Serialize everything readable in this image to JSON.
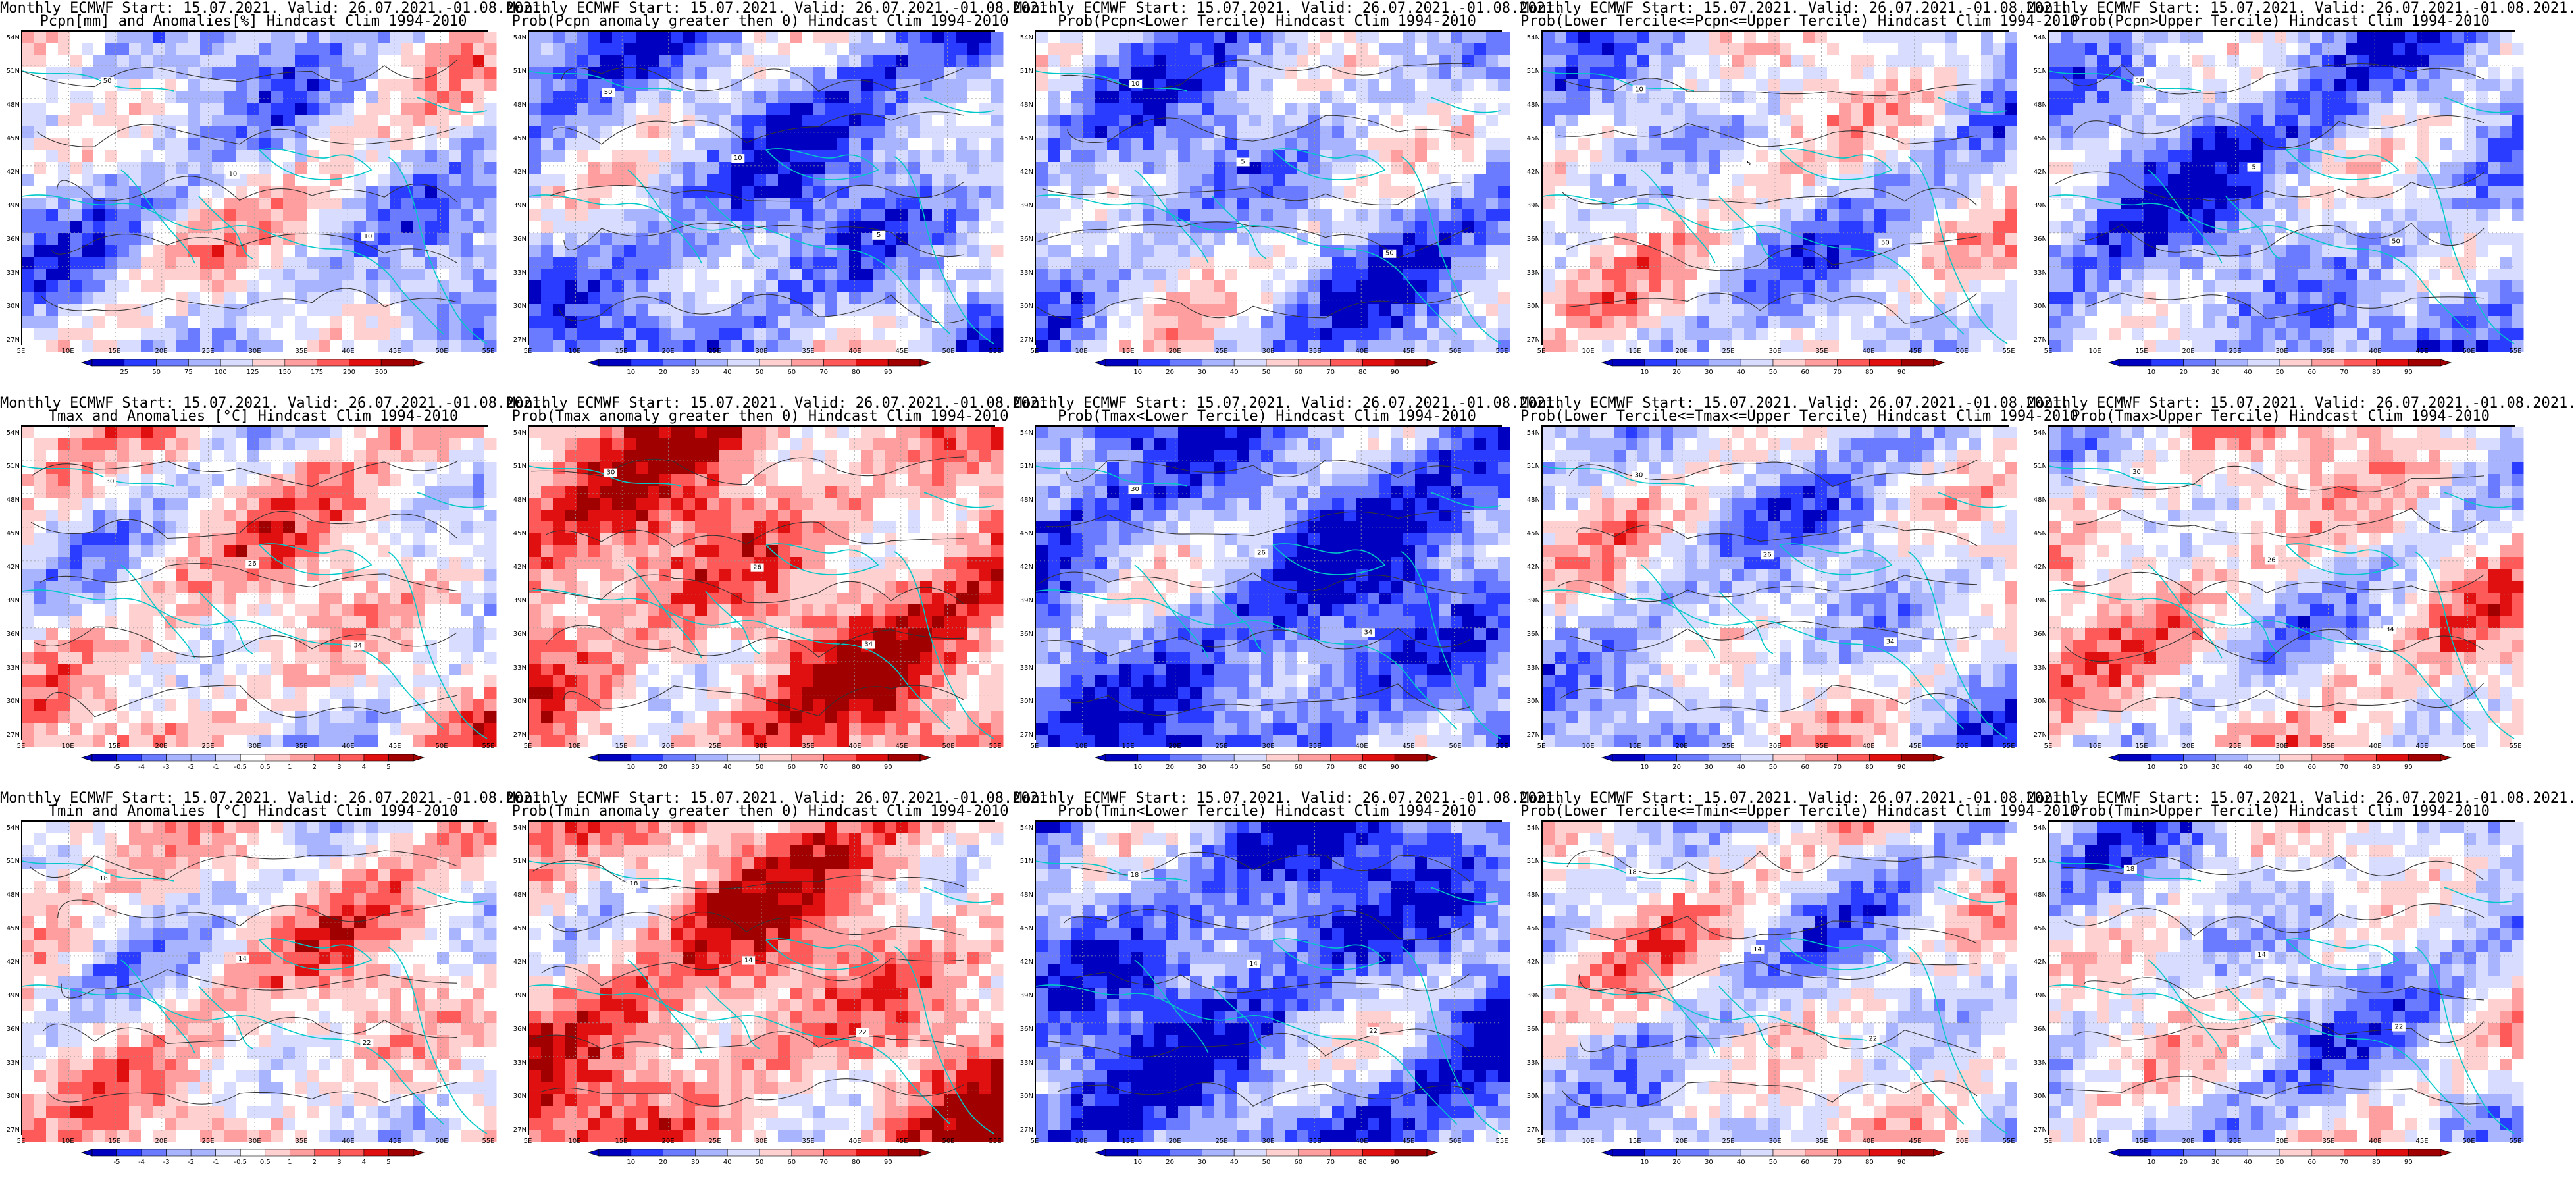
{
  "x_ticks": [
    "5E",
    "10E",
    "15E",
    "20E",
    "25E",
    "30E",
    "35E",
    "40E",
    "45E",
    "50E",
    "55E"
  ],
  "y_ticks": [
    "54N",
    "51N",
    "48N",
    "45N",
    "42N",
    "39N",
    "36N",
    "33N",
    "30N",
    "27N"
  ],
  "colors": {
    "border": "#000000",
    "coast": "#00c8c8",
    "contour": "#333333",
    "scale": [
      "#0000c0",
      "#2a3cff",
      "#6a7bff",
      "#a9b4ff",
      "#d8dcff",
      "#ffffff",
      "#ffd0d0",
      "#ff9e9e",
      "#ff5a5a",
      "#e01010",
      "#a00000"
    ]
  },
  "panels": [
    {
      "id": "pcpn-anom",
      "title1": "Monthly ECMWF Start: 15.07.2021. Valid: 26.07.2021.-01.08.2021.",
      "title2": "Pcpn[mm] and Anomalies[%] Hindcast Clim 1994-2010",
      "ticks": [
        "25",
        "50",
        "75",
        "100",
        "125",
        "150",
        "175",
        "200",
        "300"
      ],
      "bias": -0.2,
      "seed": 3,
      "contours": [
        "50",
        "10",
        "10"
      ]
    },
    {
      "id": "pcpn-prob-gt0",
      "title1": "Monthly ECMWF Start: 15.07.2021. Valid: 26.07.2021.-01.08.2021.",
      "title2": "Prob(Pcpn anomaly greater then 0) Hindcast Clim 1994-2010",
      "ticks": [
        "10",
        "20",
        "30",
        "40",
        "50",
        "60",
        "70",
        "80",
        "90"
      ],
      "bias": -0.45,
      "seed": 7,
      "contours": [
        "50",
        "10",
        "5"
      ]
    },
    {
      "id": "pcpn-prob-lower",
      "title1": "Monthly ECMWF Start: 15.07.2021. Valid: 26.07.2021.-01.08.2021.",
      "title2": "Prob(Pcpn<Lower Tercile) Hindcast Clim 1994-2010",
      "ticks": [
        "10",
        "20",
        "30",
        "40",
        "50",
        "60",
        "70",
        "80",
        "90"
      ],
      "bias": -0.35,
      "seed": 11,
      "contours": [
        "10",
        "5",
        "50"
      ]
    },
    {
      "id": "pcpn-prob-mid",
      "title1": "Monthly ECMWF Start: 15.07.2021. Valid: 26.07.2021.-01.08.2021.",
      "title2": "Prob(Lower Tercile<=Pcpn<=Upper Tercile) Hindcast Clim 1994-2010",
      "ticks": [
        "10",
        "20",
        "30",
        "40",
        "50",
        "60",
        "70",
        "80",
        "90"
      ],
      "bias": -0.15,
      "seed": 13,
      "contours": [
        "10",
        "5",
        "50"
      ]
    },
    {
      "id": "pcpn-prob-upper",
      "title1": "Monthly ECMWF Start: 15.07.2021. Valid: 26.07.2021.-01.08.2021.",
      "title2": "Prob(Pcpn>Upper Tercile) Hindcast Clim 1994-2010",
      "ticks": [
        "10",
        "20",
        "30",
        "40",
        "50",
        "60",
        "70",
        "80",
        "90"
      ],
      "bias": -0.4,
      "seed": 17,
      "contours": [
        "10",
        "5",
        "50"
      ]
    },
    {
      "id": "tmax-anom",
      "title1": "Monthly ECMWF Start: 15.07.2021. Valid: 26.07.2021.-01.08.2021.",
      "title2": "Tmax and Anomalies [°C] Hindcast Clim 1994-2010",
      "ticks": [
        "-5",
        "-4",
        "-3",
        "-2",
        "-1",
        "-0.5",
        "0.5",
        "1",
        "2",
        "3",
        "4",
        "5"
      ],
      "bias": 0.1,
      "seed": 19,
      "contours": [
        "30",
        "26",
        "34"
      ]
    },
    {
      "id": "tmax-prob-gt0",
      "title1": "Monthly ECMWF Start: 15.07.2021. Valid: 26.07.2021.-01.08.2021.",
      "title2": "Prob(Tmax anomaly greater then 0) Hindcast Clim 1994-2010",
      "ticks": [
        "10",
        "20",
        "30",
        "40",
        "50",
        "60",
        "70",
        "80",
        "90"
      ],
      "bias": 0.45,
      "seed": 23,
      "contours": [
        "30",
        "26",
        "34"
      ]
    },
    {
      "id": "tmax-prob-lower",
      "title1": "Monthly ECMWF Start: 15.07.2021. Valid: 26.07.2021.-01.08.2021.",
      "title2": "Prob(Tmax<Lower Tercile) Hindcast Clim 1994-2010",
      "ticks": [
        "10",
        "20",
        "30",
        "40",
        "50",
        "60",
        "70",
        "80",
        "90"
      ],
      "bias": -0.6,
      "seed": 29,
      "contours": [
        "30",
        "26",
        "34"
      ]
    },
    {
      "id": "tmax-prob-mid",
      "title1": "Monthly ECMWF Start: 15.07.2021. Valid: 26.07.2021.-01.08.2021.",
      "title2": "Prob(Lower Tercile<=Tmax<=Upper Tercile) Hindcast Clim 1994-2010",
      "ticks": [
        "10",
        "20",
        "30",
        "40",
        "50",
        "60",
        "70",
        "80",
        "90"
      ],
      "bias": -0.2,
      "seed": 31,
      "contours": [
        "30",
        "26",
        "34"
      ]
    },
    {
      "id": "tmax-prob-upper",
      "title1": "Monthly ECMWF Start: 15.07.2021. Valid: 26.07.2021.-01.08.2021.",
      "title2": "Prob(Tmax>Upper Tercile) Hindcast Clim 1994-2010",
      "ticks": [
        "10",
        "20",
        "30",
        "40",
        "50",
        "60",
        "70",
        "80",
        "90"
      ],
      "bias": 0.05,
      "seed": 37,
      "contours": [
        "30",
        "26",
        "34"
      ]
    },
    {
      "id": "tmin-anom",
      "title1": "Monthly ECMWF Start: 15.07.2021. Valid: 26.07.2021.-01.08.2021.",
      "title2": "Tmin and Anomalies [°C] Hindcast Clim 1994-2010",
      "ticks": [
        "-5",
        "-4",
        "-3",
        "-2",
        "-1",
        "-0.5",
        "0.5",
        "1",
        "2",
        "3",
        "4",
        "5"
      ],
      "bias": 0.1,
      "seed": 41,
      "contours": [
        "18",
        "14",
        "22"
      ]
    },
    {
      "id": "tmin-prob-gt0",
      "title1": "Monthly ECMWF Start: 15.07.2021. Valid: 26.07.2021.-01.08.2021.",
      "title2": "Prob(Tmin anomaly greater then 0) Hindcast Clim 1994-2010",
      "ticks": [
        "10",
        "20",
        "30",
        "40",
        "50",
        "60",
        "70",
        "80",
        "90"
      ],
      "bias": 0.4,
      "seed": 43,
      "contours": [
        "18",
        "14",
        "22"
      ]
    },
    {
      "id": "tmin-prob-lower",
      "title1": "Monthly ECMWF Start: 15.07.2021. Valid: 26.07.2021.-01.08.2021.",
      "title2": "Prob(Tmin<Lower Tercile) Hindcast Clim 1994-2010",
      "ticks": [
        "10",
        "20",
        "30",
        "40",
        "50",
        "60",
        "70",
        "80",
        "90"
      ],
      "bias": -0.6,
      "seed": 47,
      "contours": [
        "18",
        "14",
        "22"
      ]
    },
    {
      "id": "tmin-prob-mid",
      "title1": "Monthly ECMWF Start: 15.07.2021. Valid: 26.07.2021.-01.08.2021.",
      "title2": "Prob(Lower Tercile<=Tmin<=Upper Tercile) Hindcast Clim 1994-2010",
      "ticks": [
        "10",
        "20",
        "30",
        "40",
        "50",
        "60",
        "70",
        "80",
        "90"
      ],
      "bias": -0.1,
      "seed": 53,
      "contours": [
        "18",
        "14",
        "22"
      ]
    },
    {
      "id": "tmin-prob-upper",
      "title1": "Monthly ECMWF Start: 15.07.2021. Valid: 26.07.2021.-01.08.2021.",
      "title2": "Prob(Tmin>Upper Tercile) Hindcast Clim 1994-2010",
      "ticks": [
        "10",
        "20",
        "30",
        "40",
        "50",
        "60",
        "70",
        "80",
        "90"
      ],
      "bias": -0.2,
      "seed": 59,
      "contours": [
        "18",
        "14",
        "22"
      ]
    }
  ]
}
